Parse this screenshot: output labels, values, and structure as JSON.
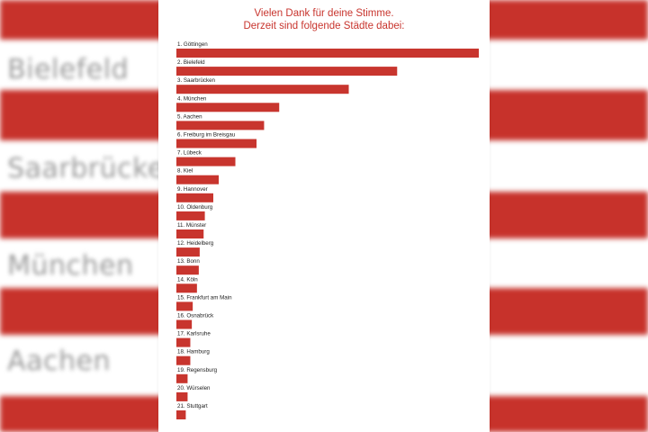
{
  "title_line1": "Vielen Dank für deine Stimme.",
  "title_line2": "Derzeit sind folgende Städte dabei:",
  "background_labels": [
    ". Bielefeld",
    ". Saarbrücken",
    ". München",
    ". Aachen"
  ],
  "colors": {
    "accent": "#c8352e",
    "stripe": "#c7322b"
  },
  "chart_data": {
    "type": "bar",
    "orientation": "horizontal",
    "title": "Vielen Dank für deine Stimme. Derzeit sind folgende Städte dabei:",
    "categories": [
      "1. Göttingen",
      "2. Bielefeld",
      "3. Saarbrücken",
      "4. München",
      "5. Aachen",
      "6. Freiburg im Breisgau",
      "7. Lübeck",
      "8. Kiel",
      "9. Hannover",
      "10. Oldenburg",
      "11. Münster",
      "12. Heidelberg",
      "13. Bonn",
      "14. Köln",
      "15. Frankfurt am Main",
      "16. Osnabrück",
      "17. Karlsruhe",
      "18. Hamburg",
      "19. Regensburg",
      "20. Würselen",
      "21. Stuttgart"
    ],
    "values": [
      100,
      73,
      57,
      34,
      29,
      26.5,
      19.5,
      14,
      12.2,
      9.4,
      9,
      7.7,
      7.4,
      6.8,
      5.4,
      5.1,
      4.6,
      4.6,
      3.7,
      3.7,
      3.1
    ],
    "xlabel": "",
    "ylabel": "",
    "grid": false
  }
}
